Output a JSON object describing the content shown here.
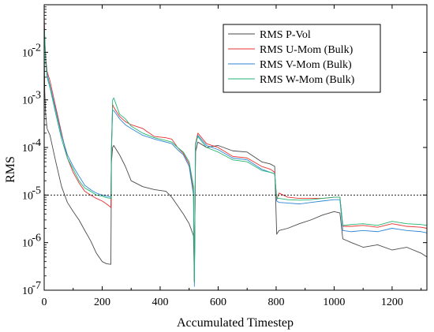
{
  "chart_data": {
    "type": "line",
    "title": "",
    "xlabel": "Accumulated Timestep",
    "ylabel": "RMS",
    "xlim": [
      0,
      1320
    ],
    "ylim": [
      1e-07,
      0.1
    ],
    "yscale": "log",
    "x_ticks": [
      0,
      200,
      400,
      600,
      800,
      1000,
      1200
    ],
    "x_tick_labels": [
      "0",
      "200",
      "400",
      "600",
      "800",
      "1000",
      "1200"
    ],
    "y_ticks": [
      1e-07,
      1e-06,
      1e-05,
      0.0001,
      0.001,
      0.01
    ],
    "y_tick_labels": [
      {
        "base": "10",
        "exp": "-7"
      },
      {
        "base": "10",
        "exp": "-6"
      },
      {
        "base": "10",
        "exp": "-5"
      },
      {
        "base": "10",
        "exp": "-4"
      },
      {
        "base": "10",
        "exp": "-3"
      },
      {
        "base": "10",
        "exp": "-2"
      }
    ],
    "reference_line": {
      "y": 1e-05,
      "style": "dotted"
    },
    "grid": false,
    "legend_position": "top-right",
    "series": [
      {
        "name": "RMS P-Vol",
        "color": "#4a4a4a",
        "x": [
          0,
          2,
          5,
          10,
          20,
          40,
          60,
          80,
          100,
          120,
          140,
          160,
          180,
          200,
          215,
          230,
          232,
          236,
          240,
          260,
          280,
          300,
          340,
          380,
          420,
          440,
          460,
          480,
          500,
          515,
          518,
          522,
          530,
          560,
          600,
          650,
          700,
          750,
          780,
          795,
          802,
          810,
          840,
          880,
          920,
          960,
          1000,
          1020,
          1030,
          1060,
          1100,
          1150,
          1200,
          1250,
          1300,
          1320
        ],
        "y": [
          0.01,
          0.0015,
          0.0005,
          0.00025,
          0.00018,
          5e-05,
          1.5e-05,
          7e-06,
          4.5e-06,
          3e-06,
          1.8e-06,
          1.1e-06,
          6e-07,
          4e-07,
          3.6e-07,
          3.5e-07,
          5e-05,
          0.0001,
          0.00011,
          7e-05,
          4e-05,
          2e-05,
          1.5e-05,
          1.3e-05,
          1.2e-05,
          9e-06,
          6e-06,
          4e-06,
          2.5e-06,
          1.4e-06,
          1.5e-07,
          8e-05,
          0.00013,
          0.0001,
          0.00011,
          8.5e-05,
          8e-05,
          5e-05,
          4.5e-05,
          4e-05,
          1.5e-06,
          1.8e-06,
          2e-06,
          2.5e-06,
          3e-06,
          3.8e-06,
          4.5e-06,
          4.2e-06,
          1.2e-06,
          1e-06,
          8e-07,
          9e-07,
          7e-07,
          8e-07,
          6e-07,
          5e-07
        ]
      },
      {
        "name": "RMS U-Mom (Bulk)",
        "color": "#e83030",
        "x": [
          0,
          2,
          5,
          10,
          20,
          40,
          60,
          80,
          100,
          120,
          140,
          160,
          180,
          200,
          215,
          230,
          232,
          236,
          240,
          260,
          280,
          300,
          340,
          380,
          420,
          440,
          460,
          480,
          500,
          515,
          518,
          522,
          530,
          560,
          600,
          650,
          700,
          750,
          780,
          795,
          802,
          810,
          840,
          880,
          920,
          960,
          1000,
          1020,
          1030,
          1060,
          1100,
          1150,
          1200,
          1250,
          1300,
          1320
        ],
        "y": [
          0.06,
          0.02,
          0.008,
          0.004,
          0.0025,
          0.0007,
          0.0002,
          6e-05,
          3e-05,
          1.8e-05,
          1.2e-05,
          1e-05,
          8.5e-06,
          7.5e-06,
          6.5e-06,
          5.5e-06,
          0.0001,
          0.0008,
          0.0007,
          0.00045,
          0.00035,
          0.0003,
          0.00025,
          0.00017,
          0.00016,
          0.00015,
          0.0001,
          7.5e-05,
          4.5e-05,
          1.2e-05,
          1.5e-07,
          0.00012,
          0.0002,
          0.00012,
          0.0001,
          6.5e-05,
          6e-05,
          4e-05,
          3.5e-05,
          3e-05,
          8e-06,
          1.1e-05,
          9e-06,
          8.5e-06,
          8.5e-06,
          8.5e-06,
          9e-06,
          9e-06,
          2.2e-06,
          2.2e-06,
          2.3e-06,
          2.1e-06,
          2.5e-06,
          2.2e-06,
          2.1e-06,
          2e-06
        ]
      },
      {
        "name": "RMS V-Mom (Bulk)",
        "color": "#2e86d4",
        "x": [
          0,
          2,
          5,
          10,
          20,
          40,
          60,
          80,
          100,
          120,
          140,
          160,
          180,
          200,
          215,
          230,
          232,
          236,
          240,
          260,
          280,
          300,
          340,
          380,
          420,
          440,
          460,
          480,
          500,
          515,
          518,
          522,
          530,
          560,
          600,
          650,
          700,
          750,
          780,
          795,
          802,
          810,
          840,
          880,
          920,
          960,
          1000,
          1020,
          1030,
          1060,
          1100,
          1150,
          1200,
          1250,
          1300,
          1320
        ],
        "y": [
          0.04,
          0.018,
          0.007,
          0.0035,
          0.002,
          0.0006,
          0.00018,
          7e-05,
          4e-05,
          2.5e-05,
          1.6e-05,
          1.3e-05,
          1.1e-05,
          1e-05,
          9.5e-06,
          9e-06,
          8e-05,
          0.0006,
          0.0006,
          0.0004,
          0.0003,
          0.00025,
          0.00018,
          0.00015,
          0.00013,
          0.00012,
          9e-05,
          7e-05,
          4e-05,
          1e-05,
          1.2e-07,
          0.00011,
          0.00018,
          0.00011,
          9e-05,
          6e-05,
          5.5e-05,
          3.5e-05,
          3e-05,
          2.8e-05,
          7.5e-06,
          7e-06,
          6.8e-06,
          6.5e-06,
          7e-06,
          7.5e-06,
          8e-06,
          8e-06,
          1.8e-06,
          1.7e-06,
          1.8e-06,
          1.7e-06,
          2e-06,
          1.8e-06,
          1.7e-06,
          1.6e-06
        ]
      },
      {
        "name": "RMS W-Mom (Bulk)",
        "color": "#22b573",
        "x": [
          0,
          2,
          5,
          10,
          20,
          40,
          60,
          80,
          100,
          120,
          140,
          160,
          180,
          200,
          215,
          230,
          232,
          236,
          240,
          260,
          280,
          300,
          340,
          380,
          420,
          440,
          460,
          480,
          500,
          515,
          518,
          522,
          530,
          560,
          600,
          650,
          700,
          750,
          780,
          795,
          802,
          810,
          840,
          880,
          920,
          960,
          1000,
          1020,
          1030,
          1060,
          1100,
          1150,
          1200,
          1250,
          1300,
          1320
        ],
        "y": [
          0.03,
          0.02,
          0.006,
          0.003,
          0.0018,
          0.0005,
          0.00015,
          6e-05,
          3.5e-05,
          2e-05,
          1.4e-05,
          1.2e-05,
          1e-05,
          9.5e-06,
          8.8e-06,
          8.5e-06,
          9e-05,
          0.001,
          0.0011,
          0.0005,
          0.0004,
          0.00028,
          0.0002,
          0.00016,
          0.00014,
          0.00013,
          0.0001,
          8e-05,
          5e-05,
          1.5e-05,
          1.5e-07,
          0.00012,
          0.00017,
          0.0001,
          8e-05,
          5.5e-05,
          5e-05,
          3.3e-05,
          3e-05,
          2.8e-05,
          8.5e-06,
          8.5e-06,
          8e-06,
          7.8e-06,
          8e-06,
          8.5e-06,
          9e-06,
          9e-06,
          2.3e-06,
          2.4e-06,
          2.5e-06,
          2.3e-06,
          2.8e-06,
          2.5e-06,
          2.4e-06,
          2.3e-06
        ]
      }
    ]
  }
}
